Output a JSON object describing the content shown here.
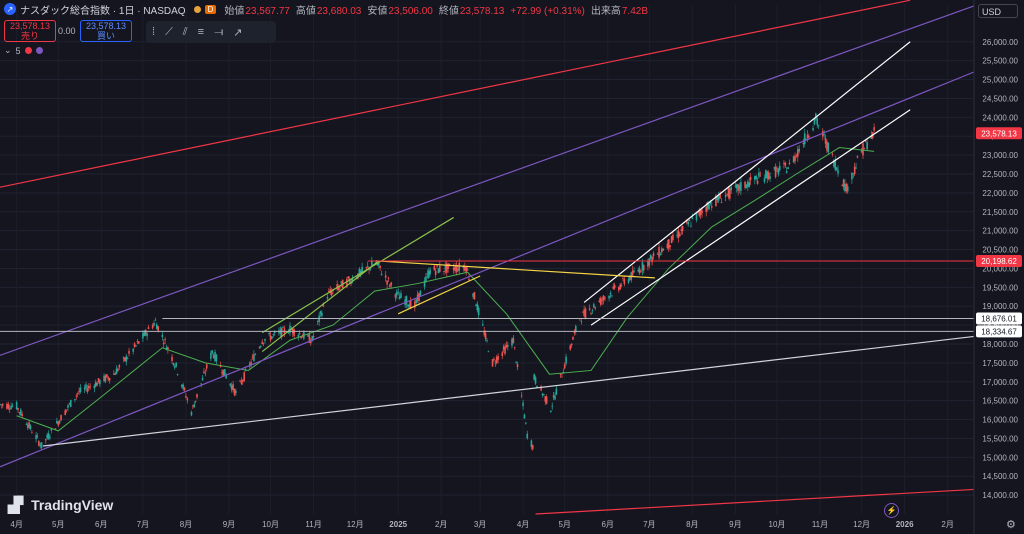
{
  "header": {
    "title": "ナスダック総合指数 · 1日 · NASDAQ",
    "interval_badge": "D",
    "ohlc": [
      {
        "key": "始値",
        "value": "23,567.77"
      },
      {
        "key": "高値",
        "value": "23,680.03"
      },
      {
        "key": "安値",
        "value": "23,506.00"
      },
      {
        "key": "終値",
        "value": "23,578.13"
      },
      {
        "key": "",
        "value": "+72.99 (+0.31%)"
      },
      {
        "key": "出来高",
        "value": "7.42B"
      }
    ],
    "sell_price": "23,578.13",
    "sell_label": "売り",
    "spread": "0.00",
    "buy_price": "23,578.13",
    "buy_label": "買い",
    "indicator_count": "5",
    "currency": "USD"
  },
  "branding": {
    "logo_text": "TradingView"
  },
  "colors": {
    "background": "#14151f",
    "up": "#26a69a",
    "down": "#ef5350",
    "ma": "#4caf50",
    "red_line": "#f23645",
    "purple_line": "#7e57c2",
    "white_line": "#ffffff",
    "yellow_line": "#f5d547",
    "green_line": "#8bc34a"
  },
  "chart_data": {
    "type": "candlestick",
    "x_axis_labels": [
      {
        "label": "4月",
        "date": "2024-04-01"
      },
      {
        "label": "5月",
        "date": "2024-05-01"
      },
      {
        "label": "6月",
        "date": "2024-06-01"
      },
      {
        "label": "7月",
        "date": "2024-07-01"
      },
      {
        "label": "8月",
        "date": "2024-08-01"
      },
      {
        "label": "9月",
        "date": "2024-09-01"
      },
      {
        "label": "10月",
        "date": "2024-10-01"
      },
      {
        "label": "11月",
        "date": "2024-11-01"
      },
      {
        "label": "12月",
        "date": "2024-12-01"
      },
      {
        "label": "2025",
        "date": "2025-01-01"
      },
      {
        "label": "2月",
        "date": "2025-02-01"
      },
      {
        "label": "3月",
        "date": "2025-03-01"
      },
      {
        "label": "4月",
        "date": "2025-04-01"
      },
      {
        "label": "5月",
        "date": "2025-05-01"
      },
      {
        "label": "6月",
        "date": "2025-06-01"
      },
      {
        "label": "7月",
        "date": "2025-07-01"
      },
      {
        "label": "8月",
        "date": "2025-08-01"
      },
      {
        "label": "9月",
        "date": "2025-09-01"
      },
      {
        "label": "10月",
        "date": "2025-10-01"
      },
      {
        "label": "11月",
        "date": "2025-11-01"
      },
      {
        "label": "12月",
        "date": "2025-12-01"
      },
      {
        "label": "2026",
        "date": "2026-01-01"
      },
      {
        "label": "2月",
        "date": "2026-02-01"
      }
    ],
    "x_range": [
      "2024-03-20",
      "2026-02-20"
    ],
    "y_range": [
      13500,
      27000
    ],
    "y_ticks": [
      14000,
      14500,
      15000,
      15500,
      16000,
      16500,
      17000,
      17500,
      18000,
      18500,
      19000,
      19500,
      20000,
      20500,
      21000,
      21500,
      22000,
      22500,
      23000,
      23500,
      24000,
      24500,
      25000,
      25500,
      26000
    ],
    "y_tick_labels": [
      "14,000.00",
      "14,500.00",
      "15,000.00",
      "15,500.00",
      "16,000.00",
      "16,500.00",
      "17,000.00",
      "17,500.00",
      "18,000.00",
      "18,500.00",
      "19,000.00",
      "19,500.00",
      "20,000.00",
      "20,500.00",
      "21,000.00",
      "21,500.00",
      "22,000.00",
      "22,500.00",
      "23,000.00",
      "23,500.00",
      "24,000.00",
      "24,500.00",
      "25,000.00",
      "25,500.00",
      "26,000.00"
    ],
    "close_path": [
      [
        "2024-03-20",
        16400
      ],
      [
        "2024-04-01",
        16350
      ],
      [
        "2024-04-19",
        15300
      ],
      [
        "2024-05-15",
        16700
      ],
      [
        "2024-06-10",
        17200
      ],
      [
        "2024-07-10",
        18600
      ],
      [
        "2024-07-25",
        17400
      ],
      [
        "2024-08-05",
        16200
      ],
      [
        "2024-08-20",
        17800
      ],
      [
        "2024-09-06",
        16700
      ],
      [
        "2024-09-25",
        18100
      ],
      [
        "2024-10-15",
        18400
      ],
      [
        "2024-10-31",
        18100
      ],
      [
        "2024-11-11",
        19300
      ],
      [
        "2024-12-16",
        20150
      ],
      [
        "2024-12-31",
        19300
      ],
      [
        "2025-01-13",
        19000
      ],
      [
        "2025-01-24",
        19950
      ],
      [
        "2025-02-19",
        20050
      ],
      [
        "2025-03-10",
        17500
      ],
      [
        "2025-03-25",
        18100
      ],
      [
        "2025-04-04",
        15600
      ],
      [
        "2025-04-08",
        15300
      ],
      [
        "2025-04-09",
        17100
      ],
      [
        "2025-04-21",
        16300
      ],
      [
        "2025-05-12",
        18700
      ],
      [
        "2025-06-15",
        19700
      ],
      [
        "2025-07-15",
        20650
      ],
      [
        "2025-08-13",
        21700
      ],
      [
        "2025-09-15",
        22350
      ],
      [
        "2025-10-10",
        22700
      ],
      [
        "2025-10-29",
        23950
      ],
      [
        "2025-11-20",
        22100
      ],
      [
        "2025-12-01",
        23100
      ],
      [
        "2025-12-10",
        23578
      ]
    ],
    "ma_path": [
      [
        "2024-04-01",
        16100
      ],
      [
        "2024-05-01",
        15700
      ],
      [
        "2024-06-01",
        16600
      ],
      [
        "2024-07-15",
        17900
      ],
      [
        "2024-08-15",
        17500
      ],
      [
        "2024-09-15",
        17300
      ],
      [
        "2024-10-15",
        18100
      ],
      [
        "2024-11-15",
        18500
      ],
      [
        "2024-12-15",
        19400
      ],
      [
        "2025-01-15",
        19600
      ],
      [
        "2025-02-20",
        19900
      ],
      [
        "2025-03-20",
        18800
      ],
      [
        "2025-04-20",
        17200
      ],
      [
        "2025-05-20",
        17300
      ],
      [
        "2025-06-15",
        18700
      ],
      [
        "2025-07-15",
        20000
      ],
      [
        "2025-08-15",
        21100
      ],
      [
        "2025-09-15",
        21800
      ],
      [
        "2025-10-15",
        22500
      ],
      [
        "2025-11-15",
        23200
      ],
      [
        "2025-12-10",
        23100
      ]
    ],
    "horizontal_levels": [
      {
        "value": 20198.62,
        "label": "20,198.62",
        "color": "#f23645",
        "from": "2024-12-10"
      },
      {
        "value": 18676.01,
        "label": "18,676.01",
        "color": "#b2b5be",
        "from": "2024-07-15"
      },
      {
        "value": 18334.67,
        "label": "18,334.67",
        "color": "#b2b5be",
        "from": "2024-03-20"
      }
    ],
    "current_price": {
      "value": 23578.13,
      "label": "23,578.13"
    },
    "trendlines": [
      {
        "color": "#f23645",
        "points": [
          [
            "2024-03-20",
            22150
          ],
          [
            "2026-01-05",
            27100
          ]
        ]
      },
      {
        "color": "#f23645",
        "points": [
          [
            "2025-04-10",
            13500
          ],
          [
            "2026-02-20",
            14150
          ]
        ]
      },
      {
        "color": "#7e57c2",
        "points": [
          [
            "2024-03-20",
            17700
          ],
          [
            "2026-02-20",
            26950
          ]
        ]
      },
      {
        "color": "#7e57c2",
        "points": [
          [
            "2024-03-20",
            14750
          ],
          [
            "2026-02-20",
            25200
          ]
        ]
      },
      {
        "color": "#d1d4dc",
        "points": [
          [
            "2024-04-20",
            15300
          ],
          [
            "2026-02-20",
            18200
          ]
        ]
      },
      {
        "color": "#ffffff",
        "points": [
          [
            "2025-05-15",
            19100
          ],
          [
            "2026-01-05",
            26000
          ]
        ]
      },
      {
        "color": "#ffffff",
        "points": [
          [
            "2025-05-20",
            18500
          ],
          [
            "2026-01-05",
            24200
          ]
        ]
      },
      {
        "color": "#f5d547",
        "points": [
          [
            "2024-12-16",
            20200
          ],
          [
            "2025-07-05",
            19750
          ]
        ]
      },
      {
        "color": "#f5d547",
        "points": [
          [
            "2025-01-01",
            18800
          ],
          [
            "2025-03-01",
            19800
          ]
        ]
      },
      {
        "color": "#8bc34a",
        "points": [
          [
            "2024-09-25",
            18300
          ],
          [
            "2025-02-10",
            21350
          ]
        ]
      },
      {
        "color": "#8bc34a",
        "points": [
          [
            "2024-09-25",
            17800
          ],
          [
            "2024-12-18",
            20200
          ]
        ]
      }
    ]
  }
}
